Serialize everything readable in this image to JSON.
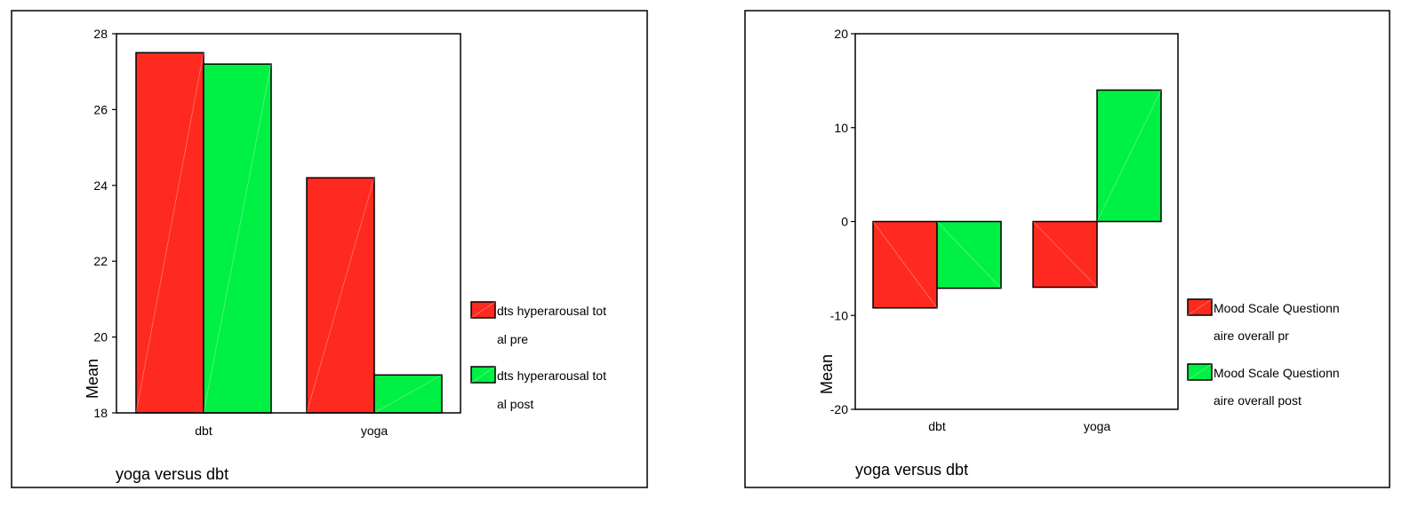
{
  "colors": {
    "pre": "#ff2a1f",
    "post": "#00f044",
    "frame": "#000000",
    "background": "#ffffff"
  },
  "chart_data": [
    {
      "type": "bar",
      "title": "",
      "xlabel": "yoga versus dbt",
      "ylabel": "Mean",
      "categories": [
        "dbt",
        "yoga"
      ],
      "ylim": [
        18,
        28
      ],
      "yticks": [
        18,
        20,
        22,
        24,
        26,
        28
      ],
      "grid": false,
      "legend_position": "right",
      "series": [
        {
          "name": "dts hyperarousal total pre",
          "legend_lines": [
            "dts hyperarousal tot",
            "al pre"
          ],
          "values": [
            27.5,
            24.2
          ],
          "color": "#ff2a1f"
        },
        {
          "name": "dts hyperarousal total post",
          "legend_lines": [
            "dts hyperarousal tot",
            "al post"
          ],
          "values": [
            27.2,
            19.0
          ],
          "color": "#00f044"
        }
      ]
    },
    {
      "type": "bar",
      "title": "",
      "xlabel": "yoga versus dbt",
      "ylabel": "Mean",
      "categories": [
        "dbt",
        "yoga"
      ],
      "ylim": [
        -20,
        20
      ],
      "yticks": [
        -20,
        -10,
        0,
        10,
        20
      ],
      "grid": false,
      "legend_position": "right",
      "series": [
        {
          "name": "Mood Scale Questionnaire overall pr",
          "legend_lines": [
            "Mood Scale Questionn",
            "aire overall pr"
          ],
          "values": [
            -9.2,
            -7.0
          ],
          "color": "#ff2a1f"
        },
        {
          "name": "Mood Scale Questionnaire overall post",
          "legend_lines": [
            "Mood Scale Questionn",
            "aire overall post"
          ],
          "values": [
            -7.1,
            14.0
          ],
          "color": "#00f044"
        }
      ]
    }
  ]
}
